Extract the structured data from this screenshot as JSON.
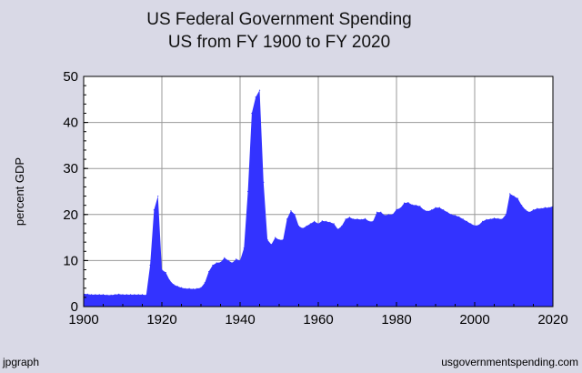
{
  "chart_data": {
    "type": "area",
    "title": "US Federal Government Spending",
    "subtitle": "US from FY 1900 to FY 2020",
    "ylabel": "percent GDP",
    "xlabel": "",
    "xlim": [
      1900,
      2020
    ],
    "ylim": [
      0,
      50
    ],
    "xticks": [
      1900,
      1920,
      1940,
      1960,
      1980,
      2000,
      2020
    ],
    "yticks": [
      0,
      10,
      20,
      30,
      40,
      50
    ],
    "grid": true,
    "fill_color": "#3333ff",
    "series": [
      {
        "x": [
          1900,
          1901,
          1902,
          1903,
          1904,
          1905,
          1906,
          1907,
          1908,
          1909,
          1910,
          1911,
          1912,
          1913,
          1914,
          1915,
          1916,
          1917,
          1918,
          1919,
          1920,
          1921,
          1922,
          1923,
          1924,
          1925,
          1926,
          1927,
          1928,
          1929,
          1930,
          1931,
          1932,
          1933,
          1934,
          1935,
          1936,
          1937,
          1938,
          1939,
          1940,
          1941,
          1942,
          1943,
          1944,
          1945,
          1946,
          1947,
          1948,
          1949,
          1950,
          1951,
          1952,
          1953,
          1954,
          1955,
          1956,
          1957,
          1958,
          1959,
          1960,
          1961,
          1962,
          1963,
          1964,
          1965,
          1966,
          1967,
          1968,
          1969,
          1970,
          1971,
          1972,
          1973,
          1974,
          1975,
          1976,
          1977,
          1978,
          1979,
          1980,
          1981,
          1982,
          1983,
          1984,
          1985,
          1986,
          1987,
          1988,
          1989,
          1990,
          1991,
          1992,
          1993,
          1994,
          1995,
          1996,
          1997,
          1998,
          1999,
          2000,
          2001,
          2002,
          2003,
          2004,
          2005,
          2006,
          2007,
          2008,
          2009,
          2010,
          2011,
          2012,
          2013,
          2014,
          2015,
          2016,
          2017,
          2018,
          2019,
          2020
        ],
        "values": [
          2.8,
          2.7,
          2.6,
          2.6,
          2.6,
          2.6,
          2.5,
          2.5,
          2.6,
          2.7,
          2.6,
          2.6,
          2.6,
          2.6,
          2.6,
          2.6,
          2.5,
          9.0,
          21.0,
          24.0,
          8.0,
          7.4,
          5.7,
          4.8,
          4.4,
          4.1,
          3.9,
          3.9,
          3.8,
          3.9,
          4.1,
          5.2,
          7.6,
          9.0,
          9.5,
          9.6,
          10.6,
          10.0,
          9.5,
          10.3,
          10.0,
          12.7,
          25.0,
          42.0,
          45.5,
          47.0,
          27.0,
          14.5,
          13.5,
          15.0,
          14.5,
          14.5,
          19.0,
          20.8,
          20.0,
          17.5,
          17.0,
          17.5,
          18.0,
          18.5,
          18.0,
          18.6,
          18.5,
          18.3,
          18.0,
          16.8,
          17.5,
          19.0,
          19.4,
          19.0,
          19.0,
          18.9,
          19.1,
          18.5,
          18.5,
          20.5,
          20.5,
          19.8,
          20.0,
          20.0,
          21.1,
          21.4,
          22.5,
          22.6,
          22.1,
          22.0,
          21.8,
          21.0,
          20.7,
          21.0,
          21.5,
          21.5,
          21.0,
          20.5,
          20.0,
          19.8,
          19.5,
          19.0,
          18.5,
          18.0,
          17.6,
          17.7,
          18.5,
          18.9,
          19.0,
          19.2,
          19.1,
          19.0,
          20.0,
          24.5,
          24.0,
          23.5,
          22.0,
          21.0,
          20.5,
          21.0,
          21.3,
          21.3,
          21.5,
          21.5,
          21.8
        ]
      }
    ]
  },
  "footer": {
    "left": "jpgraph",
    "right": "usgovernmentspending.com"
  }
}
